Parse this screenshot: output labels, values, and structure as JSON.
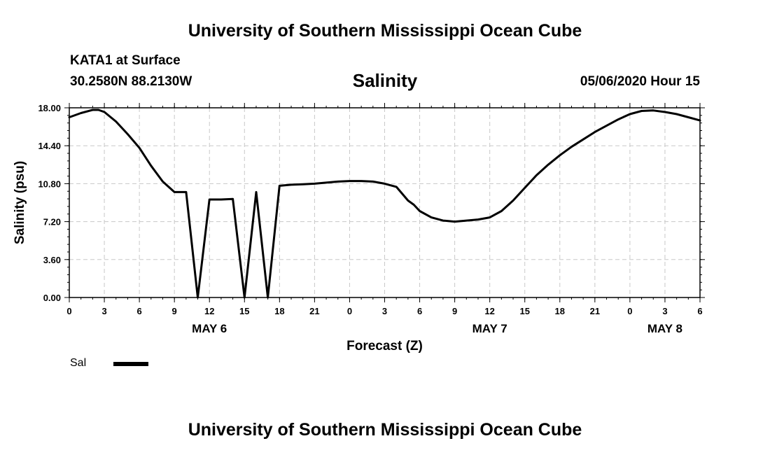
{
  "header": {
    "title": "University of Southern Mississippi Ocean Cube",
    "station": "KATA1 at Surface",
    "coordinates": "30.2580N 88.2130W",
    "plot_title": "Salinity",
    "timestamp": "05/06/2020 Hour 15"
  },
  "footer": {
    "title": "University of Southern Mississippi Ocean Cube"
  },
  "legend": {
    "label": "Sal",
    "color": "#000000"
  },
  "chart_data": {
    "type": "line",
    "title": "Salinity",
    "xlabel": "Forecast (Z)",
    "ylabel": "Salinity (psu)",
    "xlim": [
      0,
      54
    ],
    "ylim": [
      0,
      18
    ],
    "grid": true,
    "y_ticks": [
      "0.00",
      "3.60",
      "7.20",
      "10.80",
      "14.40",
      "18.00"
    ],
    "y_tick_values": [
      0,
      3.6,
      7.2,
      10.8,
      14.4,
      18.0
    ],
    "x_tick_values": [
      0,
      3,
      6,
      9,
      12,
      15,
      18,
      21,
      24,
      27,
      30,
      33,
      36,
      39,
      42,
      45,
      48,
      51,
      54
    ],
    "x_tick_labels": [
      "0",
      "3",
      "6",
      "9",
      "12",
      "15",
      "18",
      "21",
      "0",
      "3",
      "6",
      "9",
      "12",
      "15",
      "18",
      "21",
      "0",
      "3",
      "6"
    ],
    "date_labels": [
      {
        "label": "MAY 6",
        "x": 12
      },
      {
        "label": "MAY 7",
        "x": 36
      },
      {
        "label": "MAY 8",
        "x": 51
      }
    ],
    "series": [
      {
        "name": "Sal",
        "color": "#000000",
        "x": [
          0,
          1,
          2,
          2.5,
          3,
          4,
          5,
          6,
          7,
          8,
          9,
          10,
          11,
          12,
          13,
          14,
          15,
          16,
          17,
          18,
          19,
          20,
          21,
          22,
          23,
          24,
          25,
          26,
          27,
          28,
          29,
          29.5,
          30,
          31,
          32,
          33,
          34,
          35,
          36,
          37,
          38,
          39,
          40,
          41,
          42,
          43,
          44,
          45,
          46,
          47,
          48,
          49,
          50,
          51,
          52,
          53,
          54
        ],
        "values": [
          17.1,
          17.5,
          17.8,
          17.8,
          17.6,
          16.7,
          15.5,
          14.2,
          12.5,
          11.0,
          10.0,
          10.0,
          0.0,
          9.3,
          9.3,
          9.35,
          0.0,
          10.0,
          0.0,
          10.6,
          10.7,
          10.75,
          10.8,
          10.9,
          11.0,
          11.05,
          11.05,
          11.0,
          10.8,
          10.5,
          9.2,
          8.8,
          8.2,
          7.6,
          7.3,
          7.2,
          7.3,
          7.4,
          7.6,
          8.2,
          9.2,
          10.4,
          11.6,
          12.6,
          13.5,
          14.3,
          15.0,
          15.7,
          16.3,
          16.9,
          17.4,
          17.7,
          17.75,
          17.6,
          17.4,
          17.1,
          16.8
        ]
      }
    ]
  }
}
